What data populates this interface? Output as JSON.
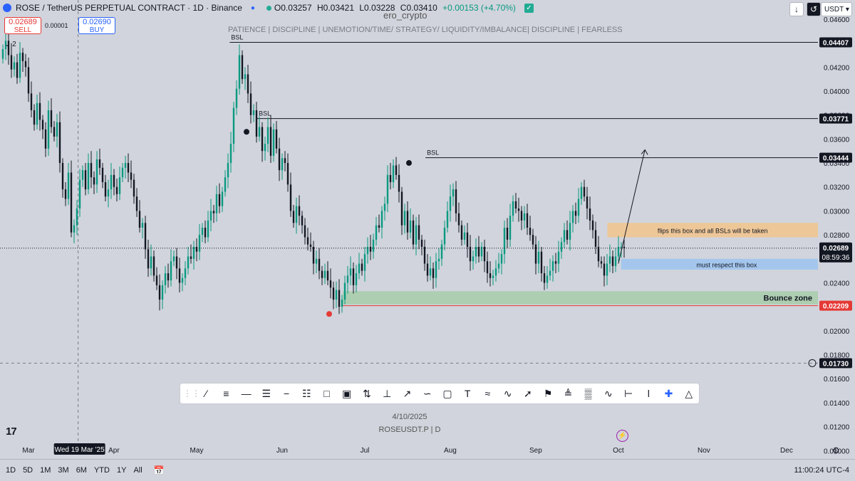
{
  "header": {
    "title": "ROSE / TetherUS PERPETUAL CONTRACT · 1D · Binance",
    "open": "O0.03257",
    "high": "H0.03421",
    "low": "L0.03228",
    "close": "C0.03410",
    "change": "+0.00153 (+4.70%)"
  },
  "trade": {
    "sell_price": "0.02689",
    "sell_label": "SELL",
    "spread": "0.00001",
    "buy_price": "0.02690",
    "buy_label": "BUY"
  },
  "watermark": {
    "author": "ero_crypto",
    "motto": "PATIENCE  |  DISCIPLINE  |  UNEMOTION/TIME/ STRATEGY/ LIQUIDITY/IMBALANCE|  DISCIPLINE  |  FEARLESS"
  },
  "indicator_count": "2",
  "currency": "USDT",
  "toolbar_icons": [
    "trend-line-icon",
    "parallel-channel-icon",
    "horizontal-ray-icon",
    "fib-retracement-icon",
    "horizontal-line-icon",
    "gann-box-icon",
    "callout-icon",
    "rectangle-icon",
    "long-position-icon",
    "fixed-range-icon",
    "arrow-tool-icon",
    "path-icon",
    "note-icon",
    "text-icon",
    "pattern-icon",
    "brush-icon",
    "arrow-marker-icon",
    "flag-icon",
    "date-range-icon",
    "forecast-icon",
    "polyline-icon",
    "price-range-icon",
    "vertical-line-icon",
    "crosshair-icon",
    "measure-icon"
  ],
  "watermark_date": "4/10/2025",
  "watermark_symbol": "ROSEUSDT.P | D",
  "bottom": {
    "ranges": [
      "1D",
      "5D",
      "1M",
      "3M",
      "6M",
      "YTD",
      "1Y",
      "All"
    ],
    "clock": "11:00:24 UTC-4"
  },
  "chart_data": {
    "type": "candlestick",
    "x_tick_labels": [
      "Mar",
      "Apr",
      "May",
      "Jun",
      "Jul",
      "Aug",
      "Sep",
      "Oct",
      "Nov",
      "Dec"
    ],
    "crosshair_date_label": "Wed 19 Mar '25",
    "y_tick_labels": [
      "0.04600",
      "0.04400",
      "0.04200",
      "0.04000",
      "0.03800",
      "0.03600",
      "0.03400",
      "0.03200",
      "0.03000",
      "0.02800",
      "0.02600",
      "0.02400",
      "0.02200",
      "0.02000",
      "0.01800",
      "0.01600",
      "0.01400",
      "0.01200",
      "0.01000"
    ],
    "ylim": [
      0.0096,
      0.0476
    ],
    "current_price": 0.02689,
    "current_price_label": "0.02689",
    "countdown": "08:59:36",
    "crosshair_price": 0.0173,
    "crosshair_price_label": "0.01730",
    "levels": [
      {
        "label": "BSL",
        "price": 0.04407,
        "price_label": "0.04407",
        "start": "2025-05-13"
      },
      {
        "label": "BSL",
        "price": 0.03771,
        "price_label": "0.03771",
        "start": "2025-05-23"
      },
      {
        "label": "BSL",
        "price": 0.03444,
        "price_label": "0.03444",
        "start": "2025-07-23"
      },
      {
        "label": "",
        "price": 0.02209,
        "price_label": "0.02209",
        "start": "2025-06-23",
        "color": "#e53935"
      }
    ],
    "zones": [
      {
        "label": "flips this box and all BSLs will be taken",
        "top": 0.029,
        "bottom": 0.0278,
        "start": "2025-09-27",
        "color": "#f3c48c"
      },
      {
        "label": "must respect this box",
        "top": 0.026,
        "bottom": 0.0251,
        "start": "2025-10-02",
        "color": "#9cc3f0"
      },
      {
        "label": "Bounce zone",
        "top": 0.0233,
        "bottom": 0.0222,
        "start": "2025-06-23",
        "color": "#a8ccaa"
      }
    ],
    "projection_arrow": {
      "from": [
        "2025-10-02",
        0.0256
      ],
      "to": [
        "2025-10-07",
        0.0351
      ]
    },
    "candles_close": [
      0.0435,
      0.0442,
      0.043,
      0.0418,
      0.0424,
      0.0411,
      0.0432,
      0.0425,
      0.042,
      0.0398,
      0.0384,
      0.0372,
      0.039,
      0.0376,
      0.0368,
      0.0352,
      0.0384,
      0.037,
      0.0362,
      0.0374,
      0.034,
      0.0318,
      0.031,
      0.0332,
      0.0282,
      0.0288,
      0.0302,
      0.0326,
      0.0334,
      0.0318,
      0.034,
      0.0328,
      0.0322,
      0.0343,
      0.0336,
      0.0324,
      0.0312,
      0.0318,
      0.033,
      0.032,
      0.0314,
      0.0328,
      0.0336,
      0.034,
      0.0332,
      0.0326,
      0.0312,
      0.03,
      0.0286,
      0.029,
      0.0268,
      0.0252,
      0.0262,
      0.0246,
      0.0238,
      0.0226,
      0.0238,
      0.0248,
      0.0242,
      0.0258,
      0.0262,
      0.0252,
      0.024,
      0.0244,
      0.0252,
      0.0262,
      0.026,
      0.027,
      0.0266,
      0.028,
      0.0286,
      0.0278,
      0.0292,
      0.03,
      0.0298,
      0.0314,
      0.0304,
      0.0316,
      0.0328,
      0.034,
      0.0356,
      0.0386,
      0.0402,
      0.043,
      0.041,
      0.0414,
      0.0398,
      0.038,
      0.0384,
      0.0362,
      0.037,
      0.035,
      0.0356,
      0.037,
      0.0346,
      0.0368,
      0.0352,
      0.0334,
      0.0344,
      0.034,
      0.0322,
      0.03,
      0.029,
      0.0304,
      0.0296,
      0.0288,
      0.0278,
      0.0272,
      0.027,
      0.0256,
      0.026,
      0.025,
      0.0244,
      0.025,
      0.0242,
      0.0236,
      0.0226,
      0.0234,
      0.022,
      0.0226,
      0.024,
      0.0246,
      0.0252,
      0.0238,
      0.0248,
      0.0256,
      0.025,
      0.0264,
      0.027,
      0.0266,
      0.0276,
      0.0288,
      0.0286,
      0.03,
      0.0306,
      0.033,
      0.0324,
      0.0338,
      0.033,
      0.0316,
      0.0288,
      0.03,
      0.0282,
      0.0292,
      0.0272,
      0.0288,
      0.0276,
      0.027,
      0.0256,
      0.0246,
      0.0252,
      0.0244,
      0.0258,
      0.026,
      0.0272,
      0.0286,
      0.03,
      0.0312,
      0.0318,
      0.0298,
      0.0288,
      0.0276,
      0.0282,
      0.027,
      0.0258,
      0.0262,
      0.027,
      0.0262,
      0.027,
      0.0258,
      0.0248,
      0.0244,
      0.0246,
      0.0252,
      0.0256,
      0.0264,
      0.0286,
      0.0276,
      0.0296,
      0.0308,
      0.0302,
      0.03,
      0.0292,
      0.0298,
      0.0286,
      0.028,
      0.0272,
      0.0256,
      0.0266,
      0.0248,
      0.024,
      0.0246,
      0.025,
      0.0258,
      0.0256,
      0.0266,
      0.0274,
      0.0284,
      0.0276,
      0.029,
      0.03,
      0.0296,
      0.031,
      0.032,
      0.0312,
      0.0302,
      0.0292,
      0.0284,
      0.027,
      0.0258,
      0.0256,
      0.0246,
      0.0256,
      0.0262,
      0.0254,
      0.0262,
      0.027,
      0.027,
      0.0269
    ]
  }
}
